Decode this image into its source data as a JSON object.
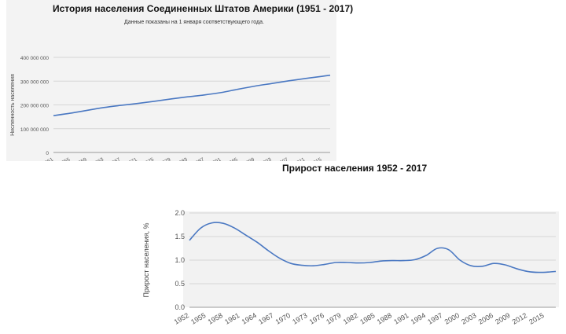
{
  "chart_data": [
    {
      "type": "line",
      "title": "История населения Соединенных Штатов Америки (1951 - 2017)",
      "subtitle": "Данные показаны на 1 января соответствующего года.",
      "ylabel": "Нисленность населения",
      "xlabel": "",
      "ylim": [
        0,
        400000000
      ],
      "yticks": [
        {
          "value": 0,
          "label": "0"
        },
        {
          "value": 100000000,
          "label": "100 000 000"
        },
        {
          "value": 200000000,
          "label": "200 000 000"
        },
        {
          "value": 300000000,
          "label": "300 000 000"
        },
        {
          "value": 400000000,
          "label": "400 000 000"
        }
      ],
      "xlim": [
        1951,
        2017
      ],
      "xticks": [
        "1951",
        "1955",
        "1959",
        "1963",
        "1967",
        "1971",
        "1975",
        "1979",
        "1983",
        "1987",
        "1991",
        "1995",
        "1999",
        "2003",
        "2007",
        "2011",
        "2015"
      ],
      "grid": true,
      "color": "#4a78c2",
      "x": [
        1951,
        1955,
        1959,
        1963,
        1967,
        1971,
        1975,
        1979,
        1983,
        1987,
        1991,
        1995,
        1999,
        2003,
        2007,
        2011,
        2015,
        2017
      ],
      "y": [
        155000000,
        165000000,
        177000000,
        189000000,
        198000000,
        206000000,
        215000000,
        225000000,
        234000000,
        242000000,
        252000000,
        266000000,
        279000000,
        290000000,
        301000000,
        311000000,
        320000000,
        325000000
      ]
    },
    {
      "type": "line",
      "title": "Прирост населения 1952 - 2017",
      "ylabel": "Прирост населения, %",
      "xlabel": "",
      "ylim": [
        0,
        2.0
      ],
      "yticks": [
        {
          "value": 0,
          "label": "0.0"
        },
        {
          "value": 0.5,
          "label": "0.5"
        },
        {
          "value": 1.0,
          "label": "1.0"
        },
        {
          "value": 1.5,
          "label": "1.5"
        },
        {
          "value": 2.0,
          "label": "2.0"
        }
      ],
      "xlim": [
        1952,
        2017
      ],
      "xticks": [
        "1952",
        "1955",
        "1958",
        "1961",
        "1964",
        "1967",
        "1970",
        "1973",
        "1976",
        "1979",
        "1982",
        "1985",
        "1988",
        "1991",
        "1994",
        "1997",
        "2000",
        "2003",
        "2006",
        "2009",
        "2012",
        "2015"
      ],
      "grid": true,
      "color": "#4a78c2",
      "x": [
        1952,
        1954,
        1956,
        1958,
        1960,
        1962,
        1964,
        1966,
        1968,
        1970,
        1972,
        1974,
        1976,
        1978,
        1980,
        1982,
        1984,
        1986,
        1988,
        1990,
        1992,
        1994,
        1996,
        1998,
        2000,
        2002,
        2004,
        2006,
        2008,
        2010,
        2012,
        2014,
        2016,
        2017
      ],
      "y": [
        1.42,
        1.68,
        1.79,
        1.78,
        1.68,
        1.53,
        1.38,
        1.2,
        1.04,
        0.93,
        0.89,
        0.88,
        0.91,
        0.95,
        0.95,
        0.94,
        0.95,
        0.98,
        0.99,
        0.99,
        1.01,
        1.1,
        1.25,
        1.22,
        1.0,
        0.88,
        0.87,
        0.93,
        0.9,
        0.82,
        0.76,
        0.74,
        0.75,
        0.76
      ]
    }
  ]
}
